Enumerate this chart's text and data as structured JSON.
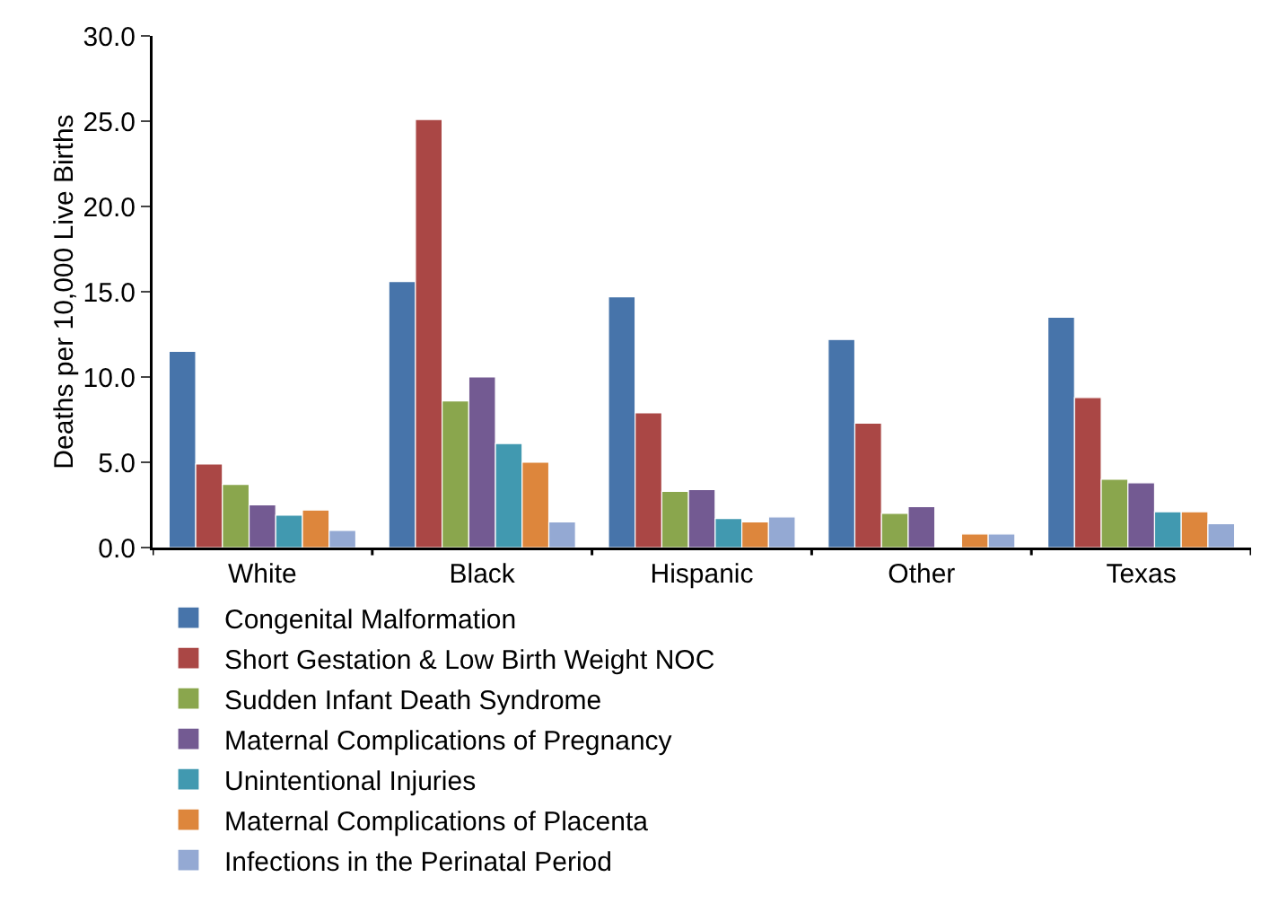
{
  "chart_data": {
    "type": "bar",
    "categories": [
      "White",
      "Black",
      "Hispanic",
      "Other",
      "Texas"
    ],
    "ylabel": "Deaths per 10,000 Live Births",
    "ylim": [
      0,
      30
    ],
    "yticks": [
      {
        "value": 0,
        "label": "0.0"
      },
      {
        "value": 5,
        "label": "5.0"
      },
      {
        "value": 10,
        "label": "10.0"
      },
      {
        "value": 15,
        "label": "15.0"
      },
      {
        "value": 20,
        "label": "20.0"
      },
      {
        "value": 25,
        "label": "25.0"
      },
      {
        "value": 30,
        "label": "30.0"
      }
    ],
    "grid": false,
    "legend": "bottom",
    "series": [
      {
        "name": "Congenital Malformation",
        "color": "#4774aa",
        "values": [
          11.5,
          15.6,
          14.7,
          12.2,
          13.5
        ]
      },
      {
        "name": "Short Gestation & Low Birth Weight NOC",
        "color": "#aa4745",
        "values": [
          4.9,
          25.1,
          7.9,
          7.3,
          8.8
        ]
      },
      {
        "name": "Sudden Infant Death Syndrome",
        "color": "#8aa64d",
        "values": [
          3.7,
          8.6,
          3.3,
          2.0,
          4.0
        ]
      },
      {
        "name": "Maternal Complications of Pregnancy",
        "color": "#735a92",
        "values": [
          2.5,
          10.0,
          3.4,
          2.4,
          3.8
        ]
      },
      {
        "name": "Unintentional Injuries",
        "color": "#4199b0",
        "values": [
          1.9,
          6.1,
          1.7,
          null,
          2.1
        ]
      },
      {
        "name": "Maternal Complications of Placenta",
        "color": "#dd863c",
        "values": [
          2.2,
          5.0,
          1.5,
          0.8,
          2.1
        ]
      },
      {
        "name": "Infections in the Perinatal Period",
        "color": "#94a9d3",
        "values": [
          1.0,
          1.5,
          1.8,
          0.8,
          1.4
        ]
      }
    ]
  }
}
